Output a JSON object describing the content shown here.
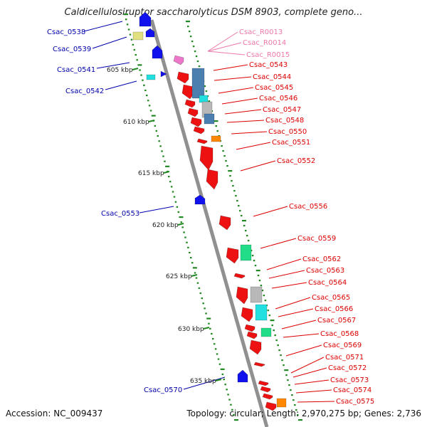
{
  "title": "Caldicellulosiruptor saccharolyticus DSM 8903, complete geno...",
  "footer": {
    "accession": "Accession: NC_009437",
    "topology": "Topology: circular; Length: 2,970,275 bp; Genes: 2,736"
  },
  "colors": {
    "backbone": "#909090",
    "tick_dots": "#228822",
    "left_label": "#0000aa",
    "right_label": "#dd0000",
    "rna_label": "#ee77aa",
    "red_gene": "#ee1111",
    "blue_gene": "#1111ee",
    "steel_gene": "#4a7fb0",
    "cyan_gene": "#22e0e0",
    "grey_gene": "#b8b8b8",
    "green_gene": "#22dd88",
    "orange_gene": "#ff8800",
    "yellow_gene": "#e0e080",
    "pink_gene": "#ee77cc"
  },
  "kbp_ticks": [
    "605 kbp",
    "610 kbp",
    "615 kbp",
    "620 kbp",
    "625 kbp",
    "630 kbp",
    "635 kbp"
  ],
  "left_labels": [
    "Csac_0538",
    "Csac_0539",
    "Csac_0541",
    "Csac_0542",
    "Csac_0553",
    "Csac_0570"
  ],
  "rna_labels": [
    "Csac_R0013",
    "Csac_R0014",
    "Csac_R0015"
  ],
  "right_labels": [
    "Csac_0543",
    "Csac_0544",
    "Csac_0545",
    "Csac_0546",
    "Csac_0547",
    "Csac_0548",
    "Csac_0550",
    "Csac_0551",
    "Csac_0552",
    "Csac_0556",
    "Csac_0559",
    "Csac_0562",
    "Csac_0563",
    "Csac_0564",
    "Csac_0565",
    "Csac_0566",
    "Csac_0567",
    "Csac_0568",
    "Csac_0569",
    "Csac_0571",
    "Csac_0572",
    "Csac_0573",
    "Csac_0574",
    "Csac_0575"
  ]
}
